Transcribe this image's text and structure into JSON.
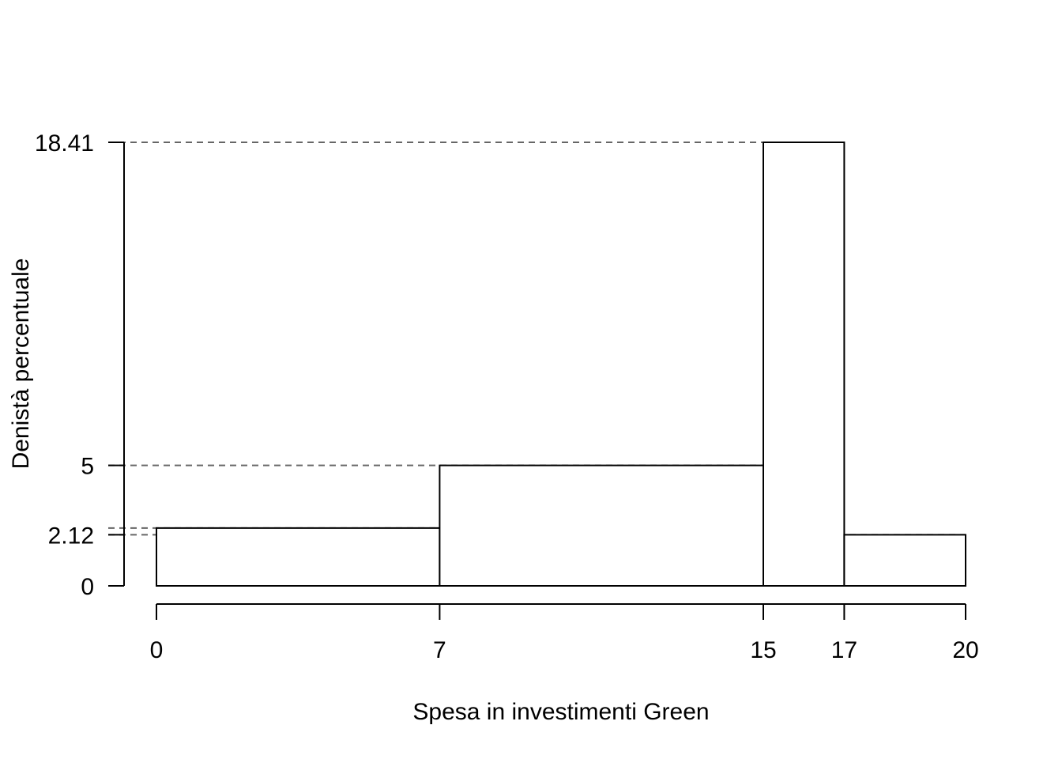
{
  "chart_data": {
    "type": "bar",
    "histogram": true,
    "title": "",
    "xlabel": "Spesa in investimenti Green",
    "ylabel": "Denistà percentuale",
    "bins": [
      {
        "start": 0,
        "end": 7,
        "value": 2.4
      },
      {
        "start": 7,
        "end": 15,
        "value": 5
      },
      {
        "start": 15,
        "end": 17,
        "value": 18.41
      },
      {
        "start": 17,
        "end": 20,
        "value": 2.12
      }
    ],
    "x_ticks": [
      0,
      7,
      15,
      17,
      20
    ],
    "x_tick_labels": [
      "0",
      "7",
      "15",
      "17",
      "20"
    ],
    "y_ticks": [
      0,
      2.12,
      5,
      18.41
    ],
    "y_tick_labels": [
      "0",
      "2.12",
      "5",
      "18.41"
    ],
    "reference_lines": [
      18.41,
      5,
      2.4,
      2.12
    ],
    "xlim": [
      0,
      20
    ],
    "ylim": [
      0,
      18.41
    ],
    "grid": false,
    "legend": "none"
  }
}
